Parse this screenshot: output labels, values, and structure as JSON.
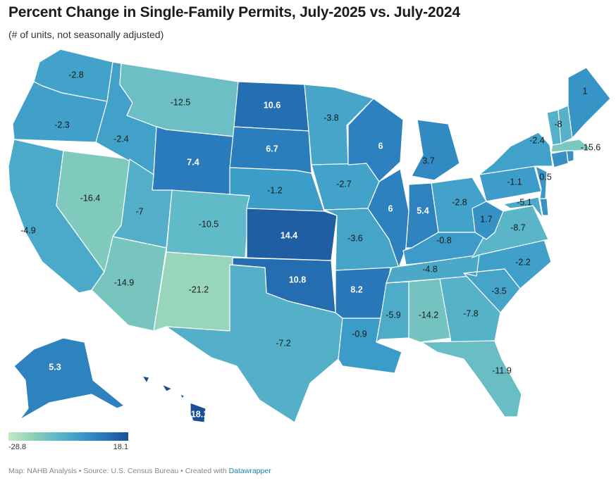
{
  "header": {
    "title": "Percent Change in Single-Family Permits, July-2025 vs. July-2024",
    "subtitle": "(# of units, not seasonally adjusted)"
  },
  "legend": {
    "min": "-28.8",
    "max": "18.1",
    "min_value": -28.8,
    "max_value": 18.1
  },
  "footer": {
    "text": "Map: NAHB Analysis • Source: U.S. Census Bureau • Created with ",
    "link": "Datawrapper"
  },
  "colors": {
    "scale": [
      "#c6e9c0",
      "#8fd0b8",
      "#5fb9c9",
      "#3b9bc9",
      "#2776b9",
      "#1a4f95"
    ]
  },
  "states": [
    {
      "id": "WA",
      "value": -2.8,
      "label": "-2.8"
    },
    {
      "id": "OR",
      "value": -2.3,
      "label": "-2.3"
    },
    {
      "id": "CA",
      "value": -4.9,
      "label": "-4.9"
    },
    {
      "id": "NV",
      "value": -16.4,
      "label": "-16.4"
    },
    {
      "id": "ID",
      "value": -2.4,
      "label": "-2.4"
    },
    {
      "id": "MT",
      "value": -12.5,
      "label": "-12.5"
    },
    {
      "id": "WY",
      "value": 7.4,
      "label": "7.4"
    },
    {
      "id": "UT",
      "value": -7,
      "label": "-7"
    },
    {
      "id": "AZ",
      "value": -14.9,
      "label": "-14.9"
    },
    {
      "id": "CO",
      "value": -10.5,
      "label": "-10.5"
    },
    {
      "id": "NM",
      "value": -21.2,
      "label": "-21.2"
    },
    {
      "id": "ND",
      "value": 10.6,
      "label": "10.6"
    },
    {
      "id": "SD",
      "value": 6.7,
      "label": "6.7"
    },
    {
      "id": "NE",
      "value": -1.2,
      "label": "-1.2"
    },
    {
      "id": "KS",
      "value": 14.4,
      "label": "14.4"
    },
    {
      "id": "OK",
      "value": 10.8,
      "label": "10.8"
    },
    {
      "id": "TX",
      "value": -7.2,
      "label": "-7.2"
    },
    {
      "id": "MN",
      "value": -3.8,
      "label": "-3.8"
    },
    {
      "id": "IA",
      "value": -2.7,
      "label": "-2.7"
    },
    {
      "id": "MO",
      "value": -3.6,
      "label": "-3.6"
    },
    {
      "id": "AR",
      "value": 8.2,
      "label": "8.2"
    },
    {
      "id": "LA",
      "value": -0.9,
      "label": "-0.9"
    },
    {
      "id": "WI",
      "value": 6,
      "label": "6"
    },
    {
      "id": "IL",
      "value": 6,
      "label": "6"
    },
    {
      "id": "MI",
      "value": 3.7,
      "label": "3.7"
    },
    {
      "id": "IN",
      "value": 5.4,
      "label": "5.4"
    },
    {
      "id": "OH",
      "value": -2.8,
      "label": "-2.8"
    },
    {
      "id": "KY",
      "value": -0.8,
      "label": "-0.8"
    },
    {
      "id": "TN",
      "value": -4.8,
      "label": "-4.8"
    },
    {
      "id": "MS",
      "value": -5.9,
      "label": "-5.9"
    },
    {
      "id": "AL",
      "value": -14.2,
      "label": "-14.2"
    },
    {
      "id": "GA",
      "value": -7.8,
      "label": "-7.8"
    },
    {
      "id": "FL",
      "value": -11.9,
      "label": "-11.9"
    },
    {
      "id": "SC",
      "value": -3.5,
      "label": "-3.5"
    },
    {
      "id": "NC",
      "value": -2.2,
      "label": "-2.2"
    },
    {
      "id": "VA",
      "value": -8.7,
      "label": "-8.7"
    },
    {
      "id": "WV",
      "value": 1.7,
      "label": "1.7"
    },
    {
      "id": "MD",
      "value": -5.1,
      "label": "-5.1"
    },
    {
      "id": "DE",
      "value": null,
      "label": ""
    },
    {
      "id": "PA",
      "value": -1.1,
      "label": "-1.1"
    },
    {
      "id": "NJ",
      "value": 0.5,
      "label": "0.5"
    },
    {
      "id": "NY",
      "value": -2.4,
      "label": "-2.4"
    },
    {
      "id": "CT",
      "value": null,
      "label": ""
    },
    {
      "id": "RI",
      "value": null,
      "label": ""
    },
    {
      "id": "MA",
      "value": -15.6,
      "label": "-15.6"
    },
    {
      "id": "VT",
      "value": null,
      "label": ""
    },
    {
      "id": "NH",
      "value": -8,
      "label": "-8"
    },
    {
      "id": "ME",
      "value": 1,
      "label": "1"
    },
    {
      "id": "AK",
      "value": 5.3,
      "label": "5.3"
    },
    {
      "id": "HI",
      "value": 18.1,
      "label": "18.1"
    }
  ]
}
